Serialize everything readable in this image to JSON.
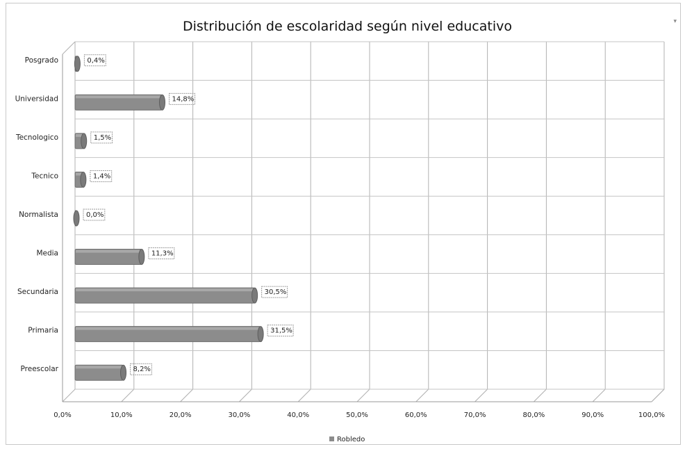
{
  "chart_data": {
    "type": "bar",
    "orientation": "horizontal",
    "title": "Distribución de escolaridad según nivel educativo",
    "categories": [
      "Posgrado",
      "Universidad",
      "Tecnologico",
      "Tecnico",
      "Normalista",
      "Media",
      "Secundaria",
      "Primaria",
      "Preescolar"
    ],
    "series": [
      {
        "name": "Robledo",
        "values": [
          0.4,
          14.8,
          1.5,
          1.4,
          0.0,
          11.3,
          30.5,
          31.5,
          8.2
        ],
        "labels": [
          "0,4%",
          "14,8%",
          "1,5%",
          "1,4%",
          "0,0%",
          "11,3%",
          "30,5%",
          "31,5%",
          "8,2%"
        ]
      }
    ],
    "xlim": [
      0,
      100
    ],
    "x_ticks": [
      "0,0%",
      "10,0%",
      "20,0%",
      "30,0%",
      "40,0%",
      "50,0%",
      "60,0%",
      "70,0%",
      "80,0%",
      "90,0%",
      "100,0%"
    ],
    "grid": true,
    "legend_position": "bottom",
    "bar_color": "#8c8c8c"
  }
}
